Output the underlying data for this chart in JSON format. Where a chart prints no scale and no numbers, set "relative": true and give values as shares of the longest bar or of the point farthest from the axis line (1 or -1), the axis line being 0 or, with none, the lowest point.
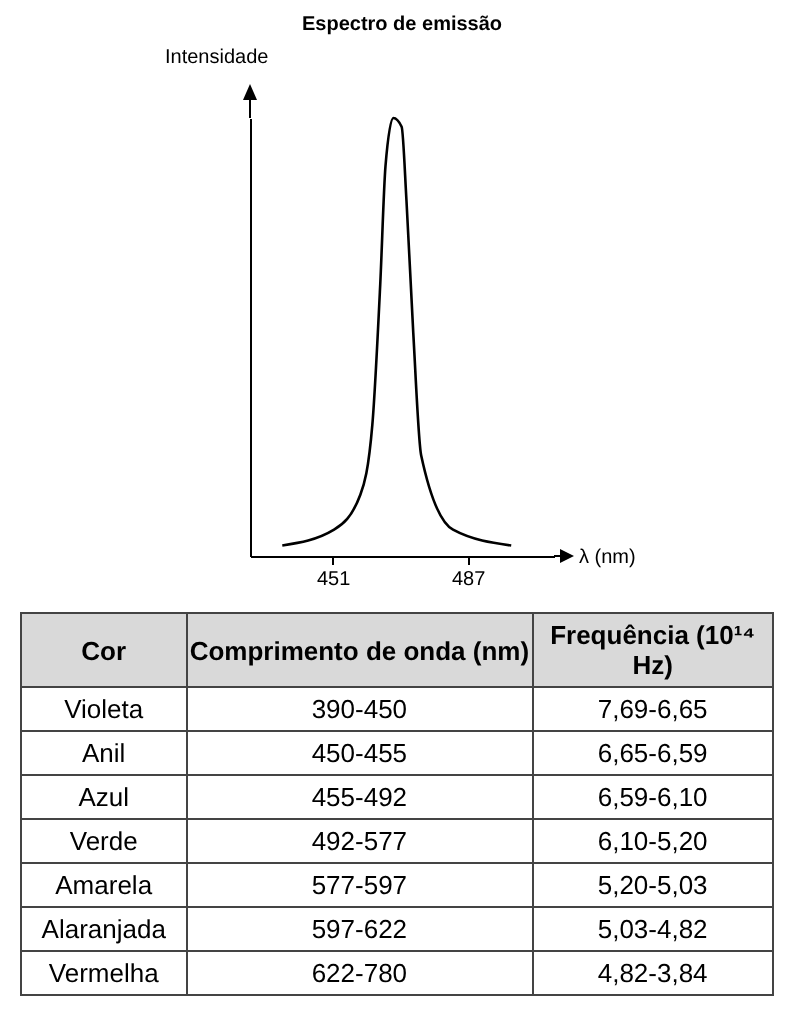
{
  "chart_data": [
    {
      "type": "line",
      "title": "Espectro de emissão",
      "xlabel": "λ (nm)",
      "ylabel": "Intensidade",
      "relative": true,
      "xlim": [
        429,
        510
      ],
      "xticks": [
        451,
        487
      ],
      "grid": false,
      "marker": "none",
      "line_style": "solid",
      "series": [
        {
          "color": "#000000",
          "x": [
            437.6,
            451.4,
            458.4,
            461.6,
            463.7,
            465.1,
            467.2,
            469.4,
            470.7,
            472.5,
            474.6,
            483.1,
            498.6
          ],
          "values": [
            0.024,
            0.06,
            0.14,
            0.3,
            0.62,
            0.89,
            1,
            0.98,
            0.81,
            0.51,
            0.23,
            0.06,
            0.024
          ]
        }
      ]
    },
    {
      "type": "other",
      "categories": [
        "Cor",
        "Comprimento de onda (nm)",
        "Frequência (10¹⁴ Hz)"
      ],
      "annotations": [
        "Violeta",
        "390-450",
        "7,69-6,65",
        "Anil",
        "450-455",
        "6,65-6,59",
        "Azul",
        "455-492",
        "6,59-6,10",
        "Verde",
        "492-577",
        "6,10-5,20",
        "Amarela",
        "577-597",
        "5,20-5,03",
        "Alaranjada",
        "597-622",
        "5,03-4,82",
        "Vermelha",
        "622-780",
        "4,82-3,84"
      ]
    }
  ]
}
